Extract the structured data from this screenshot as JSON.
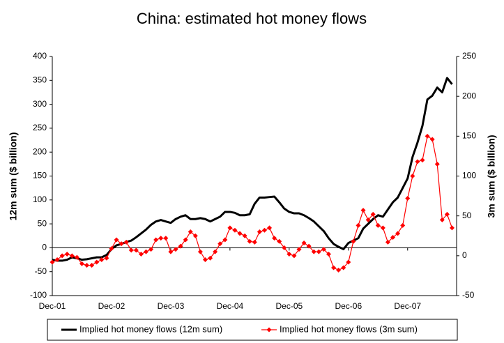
{
  "chart_data": {
    "type": "line",
    "title": "China: estimated hot money flows",
    "ylabel": "12m sum ($ billion)",
    "y2label": "3m sum ($ billion)",
    "categories": [
      "Dec-01",
      null,
      null,
      null,
      null,
      null,
      null,
      null,
      null,
      null,
      null,
      null,
      "Dec-02",
      null,
      null,
      null,
      null,
      null,
      null,
      null,
      null,
      null,
      null,
      null,
      "Dec-03",
      null,
      null,
      null,
      null,
      null,
      null,
      null,
      null,
      null,
      null,
      null,
      "Dec-04",
      null,
      null,
      null,
      null,
      null,
      null,
      null,
      null,
      null,
      null,
      null,
      "Dec-05",
      null,
      null,
      null,
      null,
      null,
      null,
      null,
      null,
      null,
      null,
      null,
      "Dec-06",
      null,
      null,
      null,
      null,
      null,
      null,
      null,
      null,
      null,
      null,
      null,
      "Dec-07",
      null,
      null,
      null,
      null,
      null,
      null,
      null,
      null,
      null
    ],
    "series": [
      {
        "name": "Implied hot money flows (12m sum)",
        "color": "#000000",
        "axis": "y",
        "marker": "none",
        "values": [
          -25,
          -27,
          -27,
          -25,
          -20,
          -22,
          -25,
          -24,
          -22,
          -20,
          -20,
          -15,
          -3,
          5,
          8,
          12,
          15,
          22,
          30,
          38,
          48,
          55,
          58,
          55,
          52,
          60,
          65,
          68,
          60,
          60,
          62,
          60,
          55,
          60,
          65,
          75,
          75,
          73,
          68,
          68,
          70,
          92,
          105,
          105,
          106,
          107,
          95,
          82,
          75,
          72,
          72,
          68,
          62,
          55,
          45,
          35,
          20,
          8,
          2,
          -3,
          10,
          15,
          20,
          40,
          50,
          60,
          68,
          65,
          80,
          95,
          105,
          125,
          145,
          190,
          220,
          255,
          310,
          318,
          335,
          325,
          355,
          342
        ]
      },
      {
        "name": "Implied hot money flows (3m sum)",
        "color": "#ff0000",
        "axis": "y2",
        "marker": "diamond",
        "values": [
          -8,
          -5,
          0,
          2,
          0,
          -2,
          -10,
          -12,
          -12,
          -8,
          -5,
          -3,
          9,
          20,
          15,
          17,
          7,
          7,
          2,
          5,
          8,
          20,
          22,
          22,
          5,
          8,
          12,
          20,
          30,
          25,
          5,
          -5,
          -3,
          5,
          15,
          20,
          35,
          32,
          28,
          25,
          18,
          17,
          30,
          32,
          35,
          22,
          18,
          10,
          2,
          0,
          8,
          16,
          12,
          5,
          5,
          8,
          2,
          -15,
          -18,
          -15,
          -8,
          18,
          38,
          57,
          45,
          52,
          38,
          35,
          17,
          23,
          28,
          38,
          72,
          100,
          118,
          120,
          150,
          146,
          115,
          45,
          52,
          35
        ]
      }
    ],
    "ylim": [
      -100,
      400
    ],
    "yticks": [
      -100,
      -50,
      0,
      50,
      100,
      150,
      200,
      250,
      300,
      350,
      400
    ],
    "y2lim": [
      -50,
      250
    ],
    "y2ticks": [
      -50,
      0,
      50,
      100,
      150,
      200,
      250
    ],
    "legend": "bottom"
  }
}
